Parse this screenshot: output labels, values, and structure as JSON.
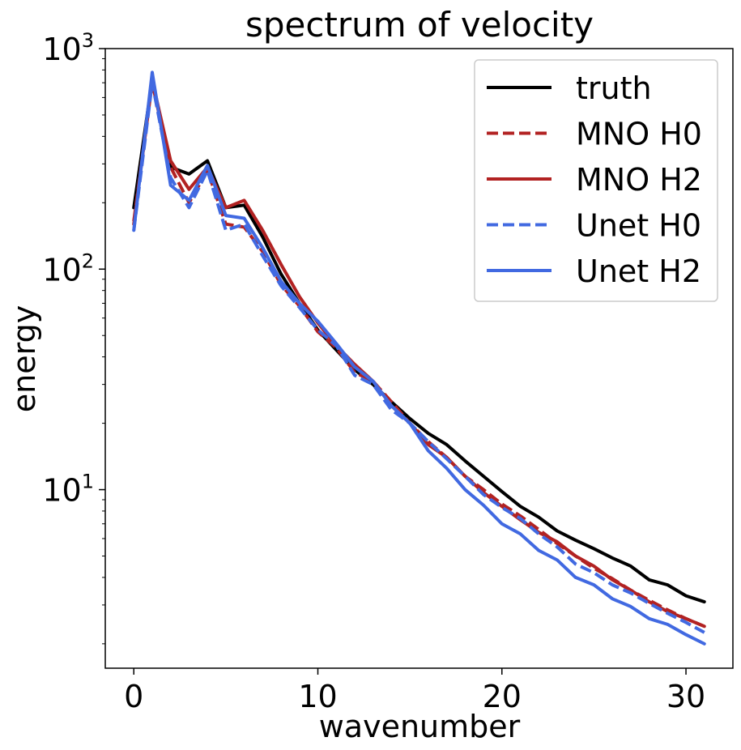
{
  "chart_data": {
    "type": "line",
    "title": "spectrum of velocity",
    "xlabel": "wavenumber",
    "ylabel": "energy",
    "yscale": "log",
    "xlim": [
      -1.55,
      32.55
    ],
    "ylim": [
      1.55,
      1000
    ],
    "xticks": [
      0,
      10,
      20,
      30
    ],
    "xtick_labels": [
      "0",
      "10",
      "20",
      "30"
    ],
    "yticks": [
      {
        "value": 10,
        "base": "10",
        "exp": "1"
      },
      {
        "value": 100,
        "base": "10",
        "exp": "2"
      },
      {
        "value": 1000,
        "base": "10",
        "exp": "3"
      }
    ],
    "legend_position": "top-right",
    "series": [
      {
        "name": "truth",
        "color": "#000000",
        "dash": "solid",
        "x": [
          0,
          1,
          2,
          3,
          4,
          5,
          6,
          7,
          8,
          9,
          10,
          11,
          12,
          13,
          14,
          15,
          16,
          17,
          18,
          19,
          20,
          21,
          22,
          23,
          24,
          25,
          26,
          27,
          28,
          29,
          30,
          31
        ],
        "values": [
          190,
          720,
          290,
          270,
          310,
          190,
          195,
          140,
          95,
          70,
          53,
          43,
          35,
          30,
          25,
          21,
          18,
          16,
          13.5,
          11.5,
          9.8,
          8.4,
          7.5,
          6.5,
          5.9,
          5.4,
          4.9,
          4.5,
          3.9,
          3.7,
          3.3,
          3.1
        ]
      },
      {
        "name": "MNO H0",
        "color": "#b22222",
        "dash": "dashed",
        "x": [
          0,
          1,
          2,
          3,
          4,
          5,
          6,
          7,
          8,
          9,
          10,
          11,
          12,
          13,
          14,
          15,
          16,
          17,
          18,
          19,
          20,
          21,
          22,
          23,
          24,
          25,
          26,
          27,
          28,
          29,
          30,
          31
        ],
        "values": [
          165,
          700,
          290,
          200,
          280,
          160,
          155,
          120,
          85,
          68,
          52,
          44,
          34,
          31,
          25,
          20,
          16.5,
          14,
          11.5,
          10,
          8.6,
          7.6,
          6.6,
          5.7,
          5.0,
          4.4,
          3.95,
          3.5,
          3.15,
          2.85,
          2.6,
          2.4
        ]
      },
      {
        "name": "MNO H2",
        "color": "#b22222",
        "dash": "solid",
        "x": [
          0,
          1,
          2,
          3,
          4,
          5,
          6,
          7,
          8,
          9,
          10,
          11,
          12,
          13,
          14,
          15,
          16,
          17,
          18,
          19,
          20,
          21,
          22,
          23,
          24,
          25,
          26,
          27,
          28,
          29,
          30,
          31
        ],
        "values": [
          160,
          720,
          310,
          230,
          290,
          190,
          205,
          150,
          105,
          75,
          57,
          45,
          37,
          31,
          24,
          20,
          16,
          14,
          11.5,
          9.7,
          8.4,
          7.3,
          6.4,
          5.8,
          5.0,
          4.5,
          3.9,
          3.5,
          3.1,
          2.8,
          2.6,
          2.4
        ]
      },
      {
        "name": "Unet H0",
        "color": "#4169e1",
        "dash": "dashed",
        "x": [
          0,
          1,
          2,
          3,
          4,
          5,
          6,
          7,
          8,
          9,
          10,
          11,
          12,
          13,
          14,
          15,
          16,
          17,
          18,
          19,
          20,
          21,
          22,
          23,
          24,
          25,
          26,
          27,
          28,
          29,
          30,
          31
        ],
        "values": [
          150,
          700,
          260,
          190,
          280,
          150,
          160,
          115,
          84,
          67,
          53,
          45,
          33,
          30,
          23,
          20,
          16.5,
          13.8,
          11.5,
          9.5,
          8.3,
          7.4,
          6.3,
          5.5,
          4.6,
          4.2,
          3.7,
          3.4,
          3.05,
          2.75,
          2.5,
          2.25
        ]
      },
      {
        "name": "Unet H2",
        "color": "#4169e1",
        "dash": "solid",
        "x": [
          0,
          1,
          2,
          3,
          4,
          5,
          6,
          7,
          8,
          9,
          10,
          11,
          12,
          13,
          14,
          15,
          16,
          17,
          18,
          19,
          20,
          21,
          22,
          23,
          24,
          25,
          26,
          27,
          28,
          29,
          30,
          31
        ],
        "values": [
          150,
          780,
          240,
          205,
          295,
          175,
          170,
          125,
          88,
          70,
          58,
          46,
          36,
          31,
          24,
          20,
          15,
          12.5,
          10,
          8.5,
          7.0,
          6.3,
          5.3,
          4.8,
          4.0,
          3.7,
          3.2,
          2.95,
          2.6,
          2.45,
          2.2,
          2.0
        ]
      }
    ]
  }
}
